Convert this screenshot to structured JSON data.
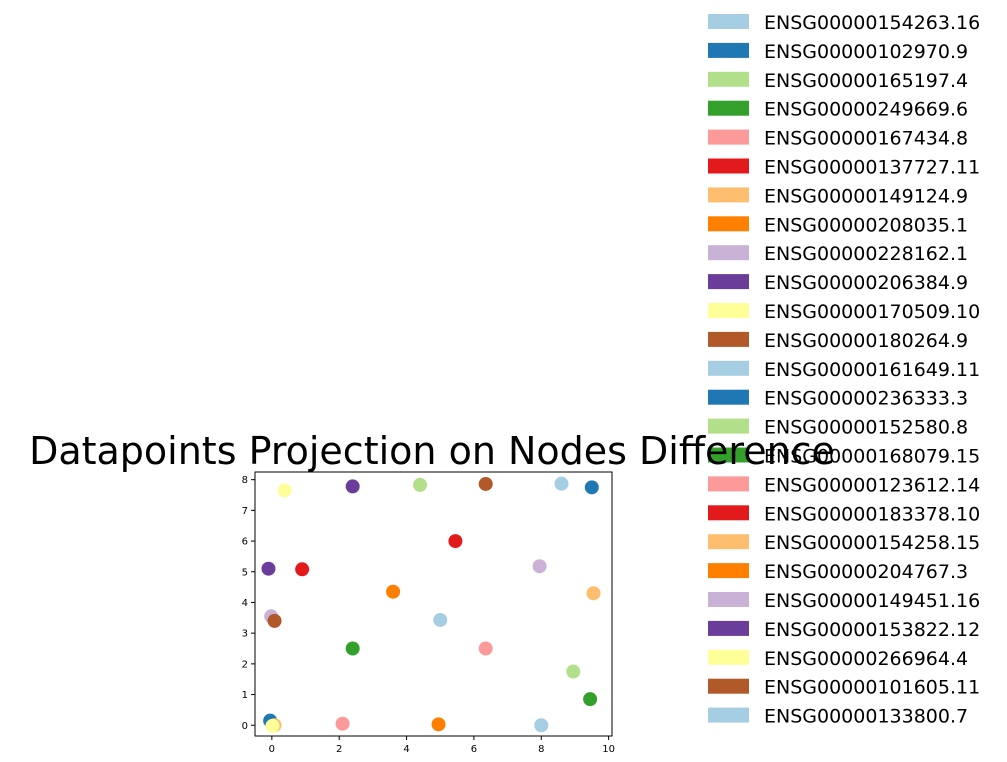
{
  "chart_data": {
    "type": "scatter",
    "title": "Datapoints Projection on Nodes Difference",
    "xlabel": "",
    "ylabel": "",
    "xlim": [
      -0.5,
      10.1
    ],
    "ylim": [
      -0.35,
      8.25
    ],
    "x_ticks": [
      0,
      2,
      4,
      6,
      8,
      10
    ],
    "y_ticks": [
      0,
      1,
      2,
      3,
      4,
      5,
      6,
      7,
      8
    ],
    "grid": false,
    "legend_position": "right",
    "series": [
      {
        "name": "ENSG00000154263.16",
        "color": "#a6cee3",
        "x": 8.6,
        "y": 7.87
      },
      {
        "name": "ENSG00000102970.9",
        "color": "#1f78b4",
        "x": 9.5,
        "y": 7.75
      },
      {
        "name": "ENSG00000165197.4",
        "color": "#b2df8a",
        "x": 4.4,
        "y": 7.83
      },
      {
        "name": "ENSG00000249669.6",
        "color": "#33a02c",
        "x": 9.45,
        "y": 0.85
      },
      {
        "name": "ENSG00000167434.8",
        "color": "#fb9a99",
        "x": 2.1,
        "y": 0.05
      },
      {
        "name": "ENSG00000137727.11",
        "color": "#e31a1c",
        "x": 5.45,
        "y": 6.0
      },
      {
        "name": "ENSG00000149124.9",
        "color": "#fdbf6f",
        "x": 9.55,
        "y": 4.3
      },
      {
        "name": "ENSG00000208035.1",
        "color": "#ff7f00",
        "x": 4.95,
        "y": 0.03
      },
      {
        "name": "ENSG00000228162.1",
        "color": "#cab2d6",
        "x": 7.95,
        "y": 5.18
      },
      {
        "name": "ENSG00000206384.9",
        "color": "#6a3d9a",
        "x": 2.4,
        "y": 7.78
      },
      {
        "name": "ENSG00000170509.10",
        "color": "#ffff99",
        "x": 0.38,
        "y": 7.65
      },
      {
        "name": "ENSG00000180264.9",
        "color": "#b15928",
        "x": 6.35,
        "y": 7.86
      },
      {
        "name": "ENSG00000161649.11",
        "color": "#a6cee3",
        "x": 5.0,
        "y": 3.43
      },
      {
        "name": "ENSG00000236333.3",
        "color": "#1f78b4",
        "x": -0.05,
        "y": 0.15
      },
      {
        "name": "ENSG00000152580.8",
        "color": "#b2df8a",
        "x": 8.95,
        "y": 1.75
      },
      {
        "name": "ENSG00000168079.15",
        "color": "#33a02c",
        "x": 2.4,
        "y": 2.5
      },
      {
        "name": "ENSG00000123612.14",
        "color": "#fb9a99",
        "x": 6.35,
        "y": 2.5
      },
      {
        "name": "ENSG00000183378.10",
        "color": "#e31a1c",
        "x": 0.9,
        "y": 5.08
      },
      {
        "name": "ENSG00000154258.15",
        "color": "#fdbf6f",
        "x": 0.08,
        "y": 0.0
      },
      {
        "name": "ENSG00000204767.3",
        "color": "#ff7f00",
        "x": 3.6,
        "y": 4.35
      },
      {
        "name": "ENSG00000149451.16",
        "color": "#cab2d6",
        "x": -0.02,
        "y": 3.55
      },
      {
        "name": "ENSG00000153822.12",
        "color": "#6a3d9a",
        "x": -0.1,
        "y": 5.1
      },
      {
        "name": "ENSG00000266964.4",
        "color": "#ffff99",
        "x": 0.02,
        "y": -0.02
      },
      {
        "name": "ENSG00000101605.11",
        "color": "#b15928",
        "x": 0.08,
        "y": 3.4
      },
      {
        "name": "ENSG00000133800.7",
        "color": "#a6cee3",
        "x": 8.0,
        "y": 0.0
      }
    ]
  }
}
